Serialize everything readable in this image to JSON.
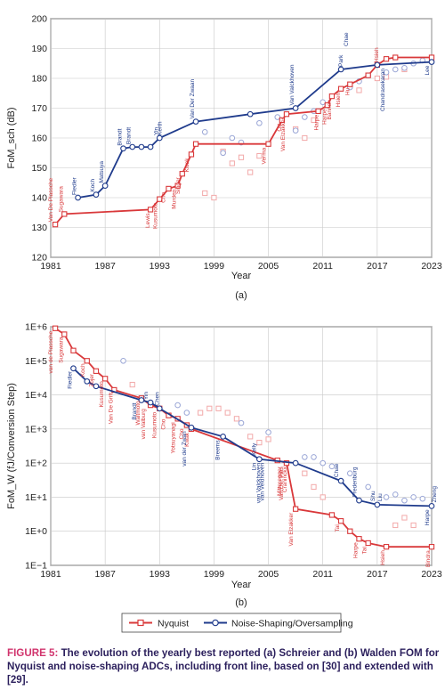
{
  "colors": {
    "nyquist": "#d9383a",
    "noise_shaping": "#1f3b8c",
    "caption_lead": "#d1346d",
    "caption_text": "#2b1f5c",
    "grid": "#c8c8c8"
  },
  "caption": {
    "lead": "FIGURE 5:",
    "text": " The evolution of the yearly best reported (a) Schreier and (b) Walden FOM for Nyquist and noise-shaping ADCs, including front line, based on [30] and extended with [29]."
  },
  "legend": {
    "nyquist": "Nyquist",
    "noise_shaping": "Noise-Shaping/Oversampling"
  },
  "chart_data": [
    {
      "type": "line",
      "panel_label": "(a)",
      "xlabel": "Year",
      "ylabel": "FoM_sch (dB)",
      "xlim": [
        1981,
        2023
      ],
      "ylim": [
        120,
        200
      ],
      "xticks": [
        1981,
        1987,
        1993,
        1999,
        2005,
        2011,
        2017,
        2023
      ],
      "yticks": [
        120,
        130,
        140,
        150,
        160,
        170,
        180,
        190,
        200
      ],
      "grid": true,
      "series": [
        {
          "name": "Nyquist",
          "front_x": [
            1981.5,
            1982.5,
            1992,
            1993,
            1994,
            1995,
            1995.5,
            1996.5,
            1997,
            2005,
            2006.5,
            2007,
            2010.5,
            2011.5,
            2012,
            2013,
            2014,
            2016,
            2017,
            2018,
            2019,
            2023
          ],
          "front_y": [
            131,
            134.5,
            136,
            139.5,
            143,
            144,
            148,
            154.5,
            158,
            158,
            166,
            168,
            169,
            171,
            174,
            176.5,
            178,
            181,
            184.5,
            186.5,
            187,
            187
          ],
          "points_x": [
            1998,
            1999,
            2000,
            2001,
            2002,
            2003,
            2004,
            2008,
            2009,
            2010,
            2015,
            2017,
            2018,
            2020
          ],
          "points_y": [
            141.5,
            140,
            155.5,
            151.5,
            153.5,
            148.5,
            154,
            163,
            160,
            166,
            176,
            180,
            180.5,
            183
          ]
        },
        {
          "name": "Noise-Shaping/Oversampling",
          "front_x": [
            1984,
            1986,
            1987,
            1989,
            1990,
            1991,
            1992,
            1993,
            1997,
            2003,
            2008,
            2013,
            2017,
            2023
          ],
          "front_y": [
            140,
            141,
            144,
            156.5,
            157,
            157,
            157,
            160,
            165.5,
            168,
            170,
            183,
            184.5,
            185.5
          ],
          "points_x": [
            1998,
            2000,
            2001,
            2002,
            2004,
            2006,
            2008,
            2009,
            2010,
            2011,
            2014,
            2015,
            2016,
            2018,
            2019,
            2020,
            2021,
            2022
          ],
          "points_y": [
            162,
            155,
            160,
            158.5,
            165,
            167,
            162.5,
            167,
            169,
            172,
            177,
            179,
            181,
            182,
            183,
            183.5,
            185,
            186
          ]
        }
      ],
      "annotations": [
        "Van De Plassche",
        "Sugawara",
        "Fiedler",
        "Koch",
        "Matsuya",
        "Brandt",
        "Brandt",
        "Yin",
        "Kerth",
        "Van Der Zwaan",
        "Lewis",
        "Kusumoto",
        "Cho",
        "Murden",
        "Singer",
        "Kwak",
        "Van Valckhoven",
        "Park",
        "Verma",
        "Van Elzakker",
        "Chae",
        "Hsieh",
        "Harpe",
        "Harpe",
        "Bannon",
        "Ott",
        "Hsieh",
        "Hu",
        "Chandrasekaran",
        "Lee"
      ]
    },
    {
      "type": "line",
      "panel_label": "(b)",
      "xlabel": "Year",
      "ylabel": "FoM_W (fJ/Conversion Step)",
      "yscale": "log",
      "xlim": [
        1981,
        2023
      ],
      "ylim": [
        0.1,
        1000000
      ],
      "xticks": [
        1981,
        1987,
        1993,
        1999,
        2005,
        2011,
        2017,
        2023
      ],
      "yticklabels": [
        "1E−1",
        "1E+0",
        "1E+1",
        "1E+2",
        "1E+3",
        "1E+4",
        "1E+5",
        "1E+6"
      ],
      "grid": true,
      "series": [
        {
          "name": "Nyquist",
          "front_x": [
            1981.5,
            1982.5,
            1983.5,
            1985,
            1986,
            1987,
            1988,
            1991,
            1992,
            1993,
            1994,
            1995,
            1996,
            1996.5,
            2006,
            2007,
            2008,
            2012,
            2013,
            2014,
            2015,
            2016,
            2018,
            2023
          ],
          "front_y": [
            900000,
            600000,
            200000,
            100000,
            50000,
            30000,
            14000,
            8000,
            5000,
            4000,
            2500,
            2000,
            1300,
            1000,
            120,
            100,
            4.5,
            3,
            2,
            1,
            0.6,
            0.45,
            0.35,
            0.35
          ],
          "points_x": [
            1990,
            1997.5,
            1998.5,
            1999.5,
            2000.5,
            2001.5,
            2003,
            2004,
            2005,
            2009,
            2010,
            2011,
            2019,
            2020,
            2021
          ],
          "points_y": [
            20000,
            3000,
            4000,
            4000,
            3000,
            2000,
            600,
            400,
            500,
            50,
            20,
            10,
            1.5,
            2.5,
            1.5
          ]
        },
        {
          "name": "Noise-Shaping/Oversampling",
          "front_x": [
            1983.5,
            1985,
            1986,
            1991,
            1992,
            1993,
            1996.5,
            2000,
            2004,
            2008,
            2013,
            2015,
            2017,
            2023
          ],
          "front_y": [
            60000,
            25000,
            18000,
            7000,
            6000,
            4000,
            1100,
            600,
            130,
            100,
            30,
            8,
            6,
            5.5
          ],
          "points_x": [
            1989,
            1995,
            1996,
            2002,
            2005,
            2009,
            2010,
            2011,
            2012,
            2014,
            2016,
            2018,
            2019,
            2020,
            2021,
            2022
          ],
          "points_y": [
            100000,
            5000,
            3000,
            1500,
            800,
            150,
            150,
            100,
            80,
            50,
            20,
            10,
            12,
            8,
            10,
            9
          ]
        }
      ],
      "annotations": [
        "van de Plassche",
        "Sugawara",
        "Koch",
        "Zojer",
        "Kusumoto",
        "Van De Grift",
        "Waltmoto",
        "Fiedler",
        "Brandt",
        "Yin",
        "Chen",
        "van Valburg",
        "Kusumoto",
        "Cho",
        "Yotsuyanagi",
        "Cho",
        "Kwak",
        "van der Zwan",
        "Breems",
        "Kelly",
        "Lin",
        "van Valckhoven",
        "van Veldhoven",
        "Van Der Plas",
        "Craninckx",
        "Mitteregger",
        "Chae",
        "Fredenburg",
        "Shu",
        "Harpe",
        "Liu",
        "Zheng",
        "Van Elzakker",
        "Tai",
        "Harpe",
        "Tai",
        "Hsieh",
        "Bindra"
      ]
    }
  ]
}
